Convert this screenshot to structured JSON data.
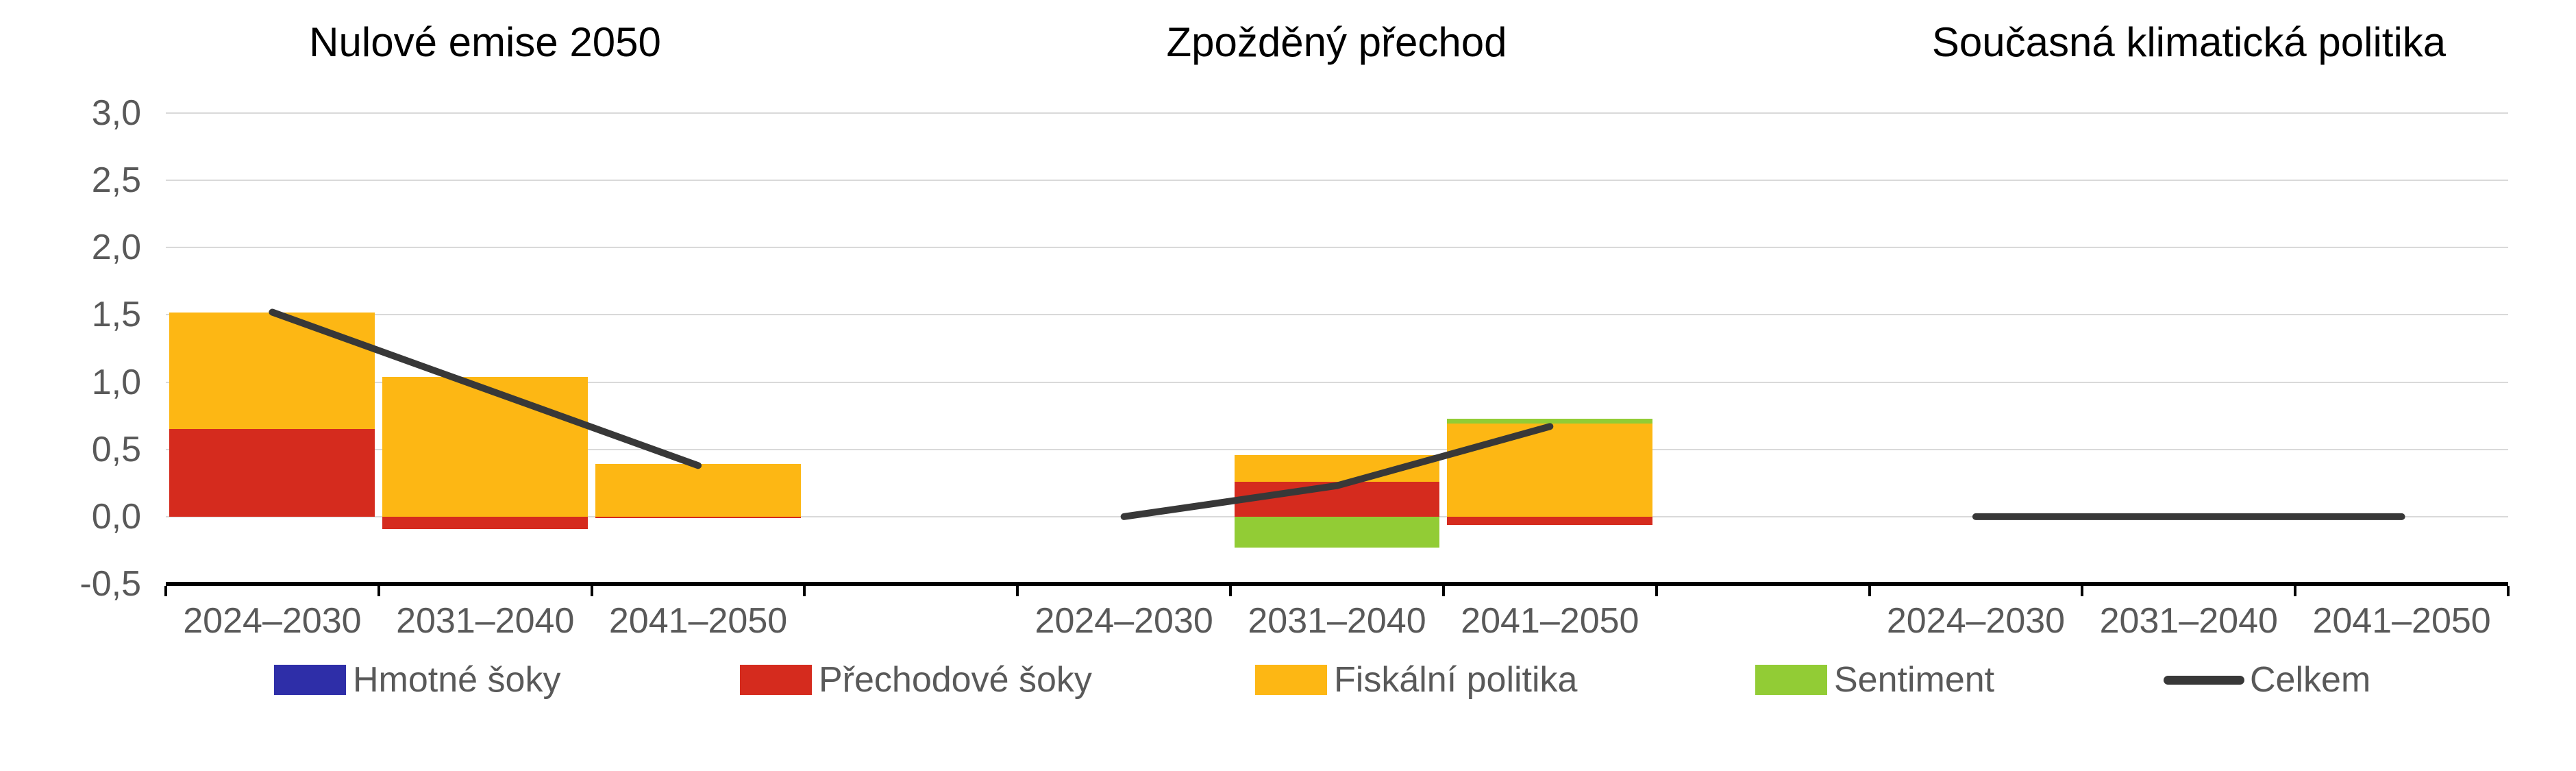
{
  "chart_data": {
    "type": "combo-stacked-bar-line",
    "title": "",
    "background": "#FFFFFF",
    "grid": true,
    "grid_color": "#D9D9D9",
    "axis_color": "#000000",
    "label_color": "#595959",
    "title_color": "#000000",
    "y_axis": {
      "min": -0.5,
      "max": 3.0,
      "step": 0.5,
      "tick_labels": [
        "3,0",
        "2,5",
        "2,0",
        "1,5",
        "1,0",
        "0,5",
        "0,0",
        "-0,5"
      ]
    },
    "categories": [
      "2024–2030",
      "2031–2040",
      "2041–2050"
    ],
    "panels": [
      {
        "title": "Nulové emise 2050",
        "series": [
          {
            "name": "Hmotné šoky",
            "type": "bar",
            "color": "#2E2EA8",
            "values": [
              0,
              0,
              0
            ]
          },
          {
            "name": "Přechodové šoky",
            "type": "bar",
            "color": "#D52B1E",
            "values": [
              0.65,
              -0.09,
              -0.01
            ]
          },
          {
            "name": "Fiskální politika",
            "type": "bar",
            "color": "#FDB714",
            "values": [
              0.87,
              1.04,
              0.39
            ]
          },
          {
            "name": "Sentiment",
            "type": "bar",
            "color": "#92CC35",
            "values": [
              0,
              0,
              0
            ]
          },
          {
            "name": "Celkem",
            "type": "line",
            "color": "#383838",
            "values": [
              1.52,
              0.95,
              0.38
            ]
          }
        ]
      },
      {
        "title": "Zpožděný přechod",
        "series": [
          {
            "name": "Hmotné šoky",
            "type": "bar",
            "color": "#2E2EA8",
            "values": [
              0,
              0,
              0
            ]
          },
          {
            "name": "Přechodové šoky",
            "type": "bar",
            "color": "#D52B1E",
            "values": [
              0,
              0.26,
              -0.06
            ]
          },
          {
            "name": "Fiskální politika",
            "type": "bar",
            "color": "#FDB714",
            "values": [
              0,
              0.2,
              0.69
            ]
          },
          {
            "name": "Sentiment",
            "type": "bar",
            "color": "#92CC35",
            "values": [
              0,
              -0.23,
              0.04
            ]
          },
          {
            "name": "Celkem",
            "type": "line",
            "color": "#383838",
            "values": [
              0.0,
              0.23,
              0.67
            ]
          }
        ]
      },
      {
        "title": "Současná klimatická politika",
        "series": [
          {
            "name": "Hmotné šoky",
            "type": "bar",
            "color": "#2E2EA8",
            "values": [
              0,
              0,
              0
            ]
          },
          {
            "name": "Přechodové šoky",
            "type": "bar",
            "color": "#D52B1E",
            "values": [
              0,
              0,
              0
            ]
          },
          {
            "name": "Fiskální politika",
            "type": "bar",
            "color": "#FDB714",
            "values": [
              0,
              0,
              0
            ]
          },
          {
            "name": "Sentiment",
            "type": "bar",
            "color": "#92CC35",
            "values": [
              0,
              0,
              0
            ]
          },
          {
            "name": "Celkem",
            "type": "line",
            "color": "#383838",
            "values": [
              0.0,
              0.0,
              0.0
            ]
          }
        ]
      }
    ],
    "legend": [
      {
        "label": "Hmotné šoky",
        "swatch": "rect",
        "color": "#2E2EA8"
      },
      {
        "label": "Přechodové šoky",
        "swatch": "rect",
        "color": "#D52B1E"
      },
      {
        "label": "Fiskální politika",
        "swatch": "rect",
        "color": "#FDB714"
      },
      {
        "label": "Sentiment",
        "swatch": "rect",
        "color": "#92CC35"
      },
      {
        "label": "Celkem",
        "swatch": "line",
        "color": "#383838"
      }
    ]
  }
}
